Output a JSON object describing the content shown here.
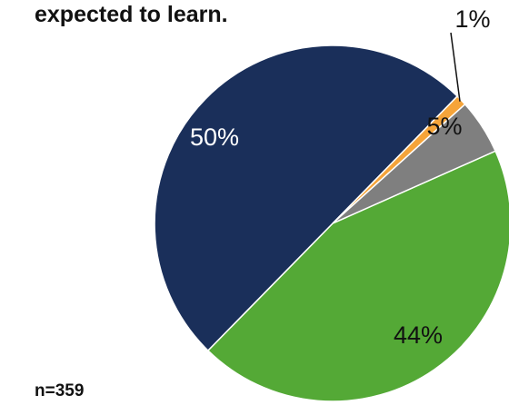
{
  "chart_data": {
    "type": "pie",
    "title": "expected to learn.",
    "note": "n=359",
    "slices": [
      {
        "value": 44,
        "label": "44%",
        "color": "#54a936",
        "label_color": "#111111"
      },
      {
        "value": 50,
        "label": "50%",
        "color": "#1a2f5a",
        "label_color": "#ffffff"
      },
      {
        "value": 1,
        "label": "1%",
        "color": "#f5a43a",
        "label_color": "#111111"
      },
      {
        "value": 5,
        "label": "5%",
        "color": "#7f7f7f",
        "label_color": "#111111"
      }
    ]
  }
}
